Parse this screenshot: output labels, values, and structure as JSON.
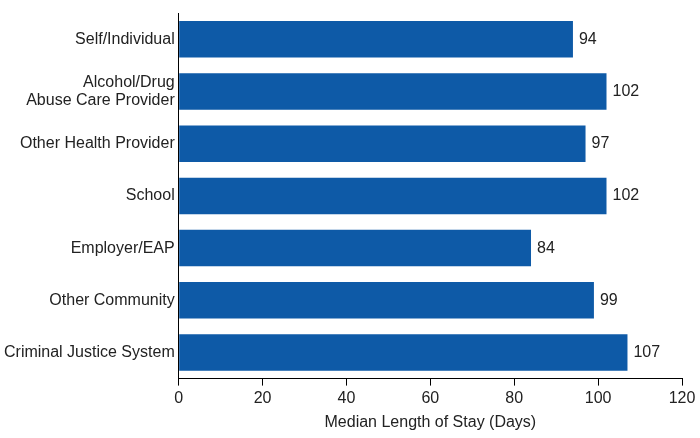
{
  "chart_data": {
    "type": "bar",
    "orientation": "horizontal",
    "categories": [
      "Self/Individual",
      "Alcohol/Drug\nAbuse Care Provider",
      "Other Health Provider",
      "School",
      "Employer/EAP",
      "Other Community",
      "Criminal Justice System"
    ],
    "values": [
      94,
      102,
      97,
      102,
      84,
      99,
      107
    ],
    "color": "#0e5aa7",
    "x_label": "Median Length of Stay (Days)",
    "xlim": [
      0,
      120
    ],
    "xticks": [
      0,
      20,
      40,
      60,
      80,
      100,
      120
    ],
    "grid": false,
    "data_labels": true
  }
}
